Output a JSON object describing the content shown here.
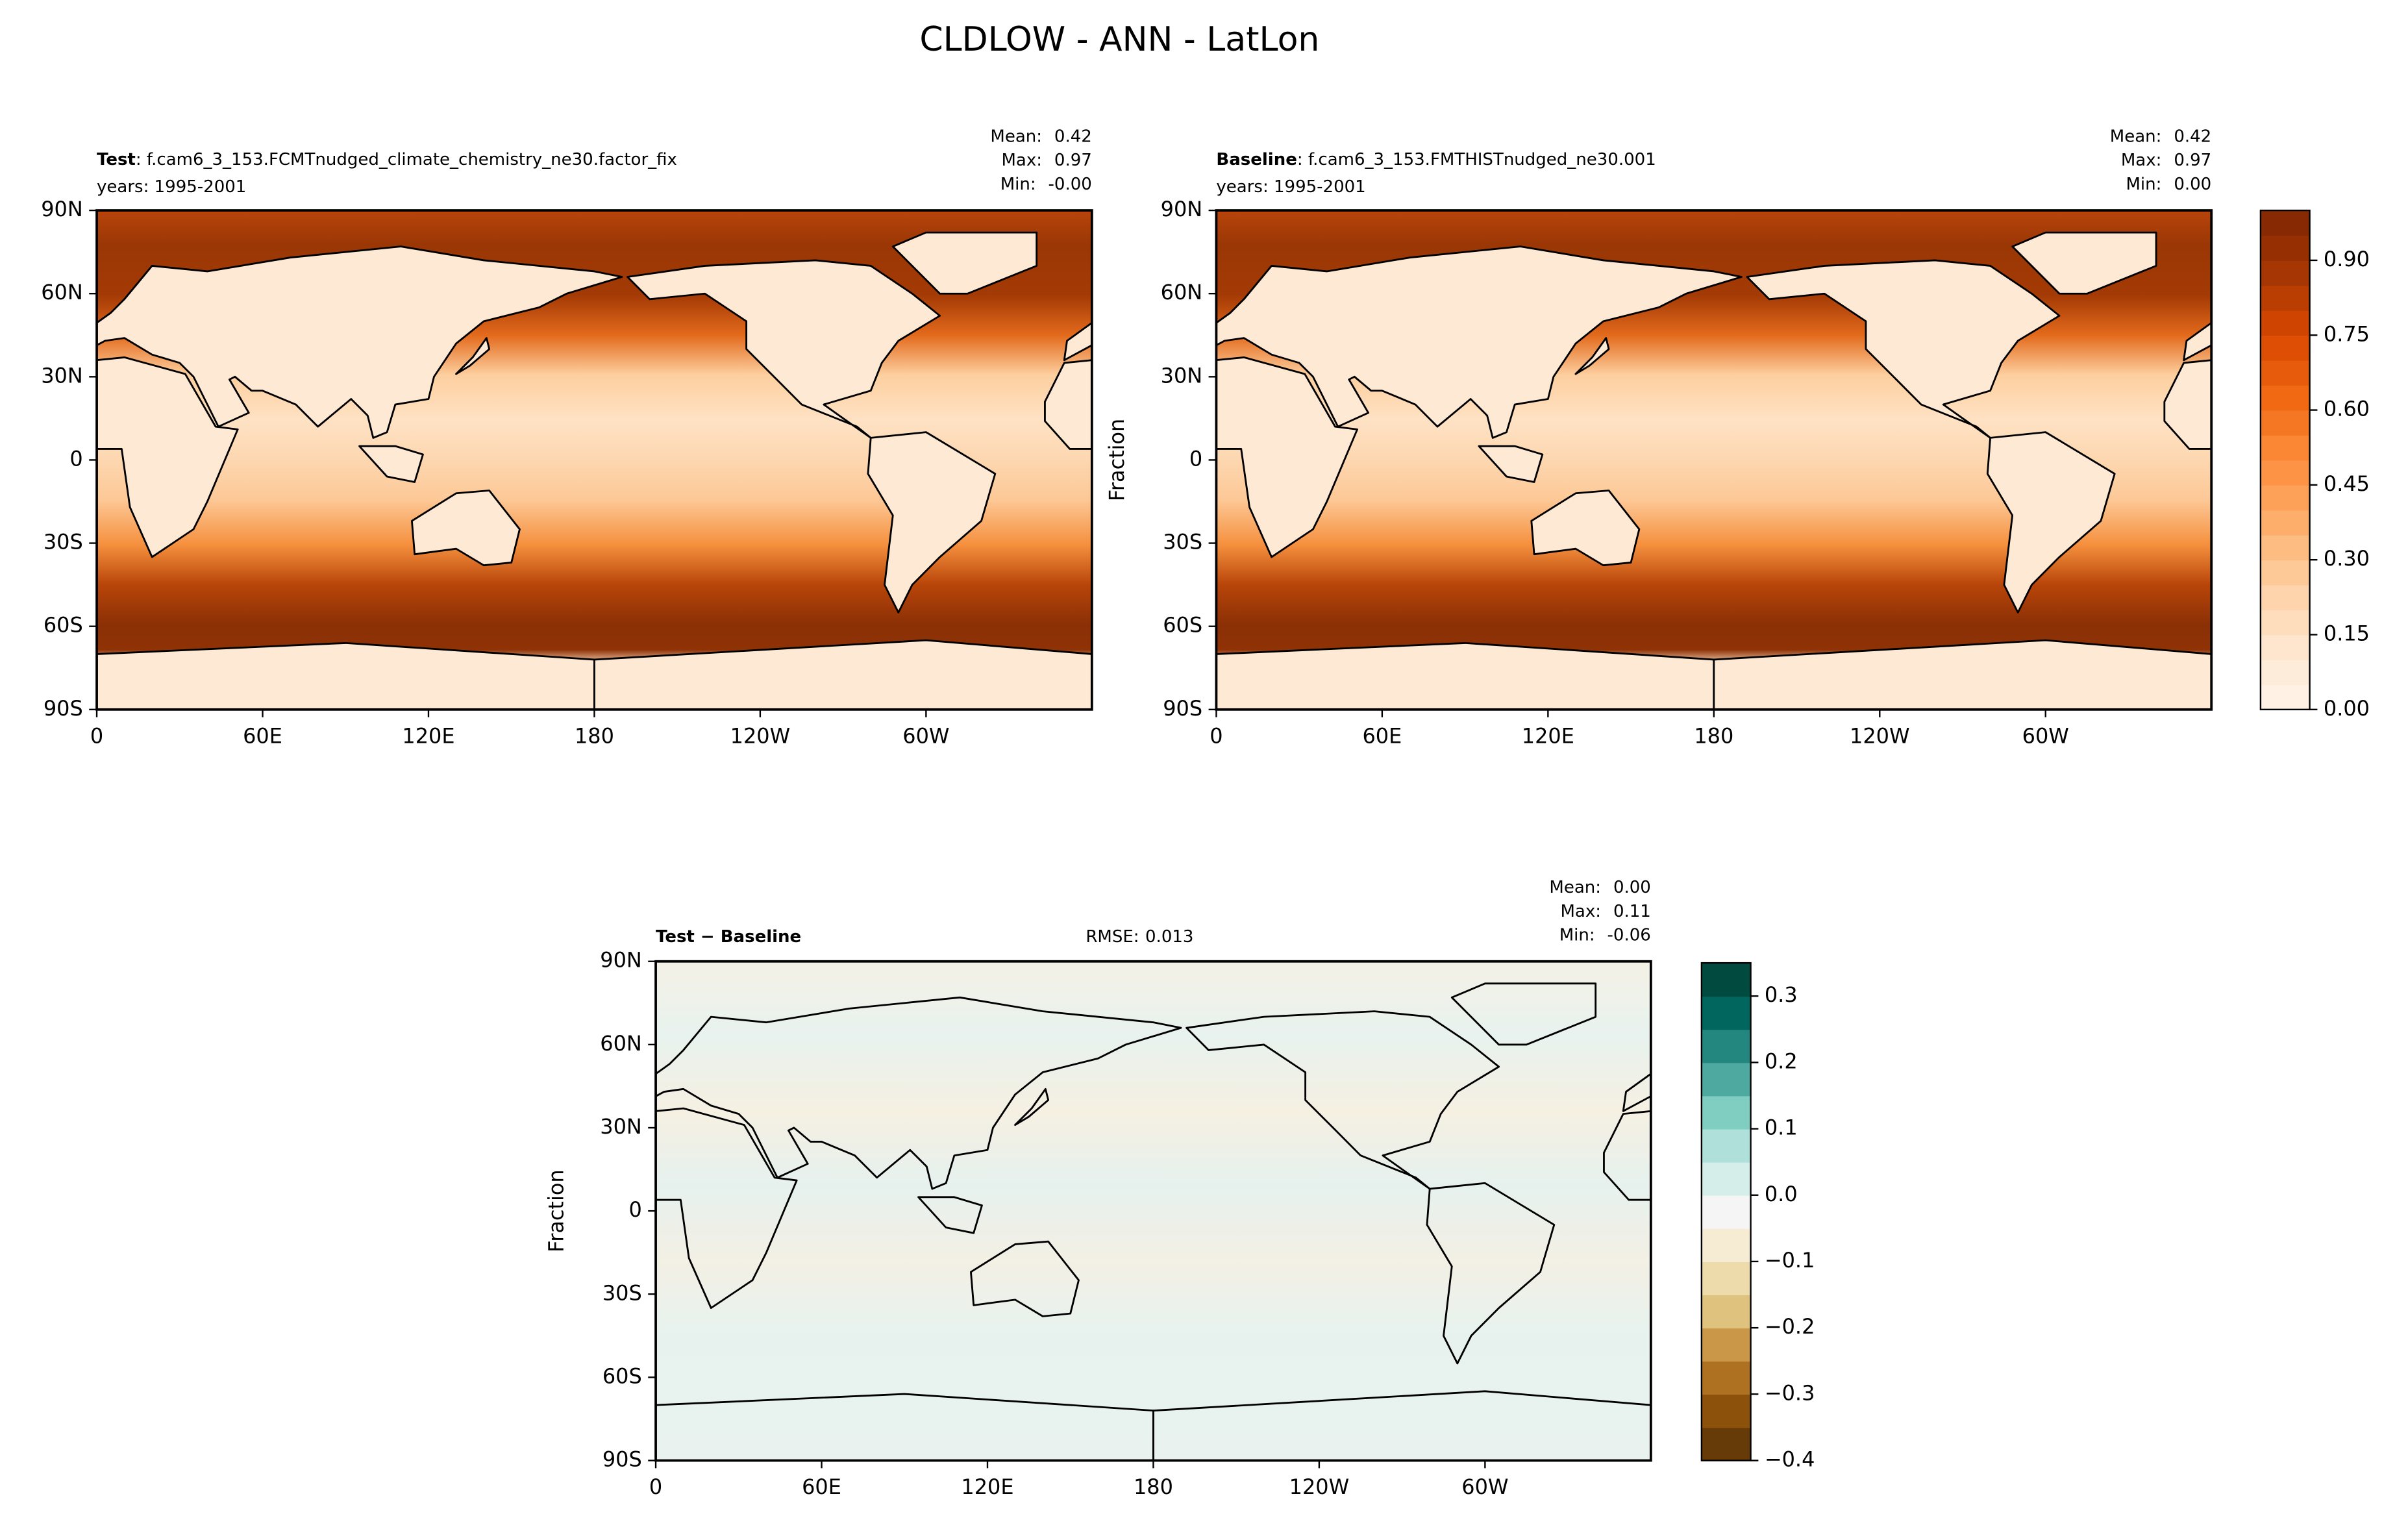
{
  "title": "CLDLOW - ANN - LatLon",
  "chart_data": [
    {
      "type": "contour-map",
      "label": "Test",
      "name": ": f.cam6_3_153.FCMTnudged_climate_chemistry_ne30.factor_fix",
      "years": "years: 1995-2001",
      "stats": [
        {
          "name": "Mean:",
          "value": 0.42
        },
        {
          "name": "Max:",
          "value": 0.97
        },
        {
          "name": "Min:",
          "value": {
            "value": 0,
            "label": "-0.00"
          }
        }
      ],
      "colormap": "Oranges",
      "xlim": [
        0,
        360
      ],
      "xticks": [
        0,
        {
          "value": 60,
          "label": "60E"
        },
        {
          "value": 120,
          "label": "120E"
        },
        180,
        {
          "value": 240,
          "label": "120W"
        },
        {
          "value": 300,
          "label": "60W"
        }
      ],
      "ylim": [
        -90,
        90
      ],
      "yticks": [
        {
          "value": -90,
          "label": "90S"
        },
        {
          "value": -60,
          "label": "60S"
        },
        {
          "value": -30,
          "label": "30S"
        },
        0,
        {
          "value": 30,
          "label": "30N"
        },
        {
          "value": 60,
          "label": "60N"
        },
        {
          "value": 90,
          "label": "90N"
        }
      ]
    },
    {
      "type": "contour-map",
      "label": "Baseline",
      "name": ": f.cam6_3_153.FMTHISTnudged_ne30.001",
      "years": "years: 1995-2001",
      "stats": [
        {
          "name": "Mean:",
          "value": 0.42
        },
        {
          "name": "Max:",
          "value": 0.97
        },
        {
          "name": "Min:",
          "value": {
            "value": 0,
            "label": "0.00"
          }
        }
      ],
      "colormap": "Oranges",
      "ylabel": "Fraction",
      "xlim": [
        0,
        360
      ],
      "xticks": [
        0,
        {
          "value": 60,
          "label": "60E"
        },
        {
          "value": 120,
          "label": "120E"
        },
        180,
        {
          "value": 240,
          "label": "120W"
        },
        {
          "value": 300,
          "label": "60W"
        }
      ],
      "ylim": [
        -90,
        90
      ],
      "yticks": [
        {
          "value": -90,
          "label": "90S"
        },
        {
          "value": -60,
          "label": "60S"
        },
        {
          "value": -30,
          "label": "30S"
        },
        0,
        {
          "value": 30,
          "label": "30N"
        },
        {
          "value": 60,
          "label": "60N"
        },
        {
          "value": 90,
          "label": "90N"
        }
      ],
      "colorbar": {
        "clim": [
          0,
          1
        ],
        "levels": 20,
        "colors": [
          "#fff5eb",
          "#fee6ce",
          "#fdd0a2",
          "#fdae6b",
          "#fd8d3c",
          "#f16913",
          "#d94801",
          "#a63603",
          "#7f2704"
        ],
        "ticks": [
          {
            "value": 0,
            "label": "0.00"
          },
          0.15,
          {
            "value": 0.3,
            "label": "0.30"
          },
          0.45,
          {
            "value": 0.6,
            "label": "0.60"
          },
          0.75,
          {
            "value": 0.9,
            "label": "0.90"
          }
        ]
      }
    },
    {
      "type": "contour-map",
      "label": "Test − Baseline",
      "rmse": {
        "name": "RMSE:",
        "value": 0.013
      },
      "stats": [
        {
          "name": "Mean:",
          "value": {
            "value": 0,
            "label": "0.00"
          }
        },
        {
          "name": "Max:",
          "value": 0.11
        },
        {
          "name": "Min:",
          "value": -0.06
        }
      ],
      "colormap": "BrBG",
      "ylabel": "Fraction",
      "xlim": [
        0,
        360
      ],
      "xticks": [
        0,
        {
          "value": 60,
          "label": "60E"
        },
        {
          "value": 120,
          "label": "120E"
        },
        180,
        {
          "value": 240,
          "label": "120W"
        },
        {
          "value": 300,
          "label": "60W"
        }
      ],
      "ylim": [
        -90,
        90
      ],
      "yticks": [
        {
          "value": -90,
          "label": "90S"
        },
        {
          "value": -60,
          "label": "60S"
        },
        {
          "value": -30,
          "label": "30S"
        },
        0,
        {
          "value": 30,
          "label": "30N"
        },
        {
          "value": 60,
          "label": "60N"
        },
        {
          "value": 90,
          "label": "90N"
        }
      ],
      "colorbar": {
        "clim": [
          -0.4,
          0.35
        ],
        "levels": 15,
        "colors": [
          "#543005",
          "#8c510a",
          "#bf812d",
          "#dfc27d",
          "#f6e8c3",
          "#f5f5f5",
          "#c7eae5",
          "#80cdc1",
          "#35978f",
          "#01665e",
          "#003c30"
        ],
        "ticks": [
          {
            "value": -0.4,
            "label": "−0.4"
          },
          {
            "value": -0.3,
            "label": "−0.3"
          },
          {
            "value": -0.2,
            "label": "−0.2"
          },
          {
            "value": -0.1,
            "label": "−0.1"
          },
          {
            "value": 0,
            "label": "0.0"
          },
          0.1,
          0.2,
          0.3
        ]
      }
    }
  ]
}
